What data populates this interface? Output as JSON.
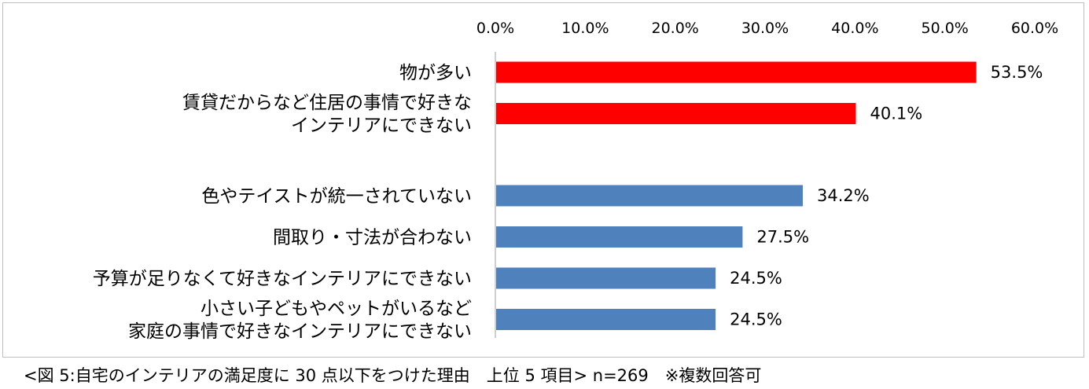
{
  "chart_data": {
    "type": "bar",
    "orientation": "horizontal",
    "xlim": [
      0,
      60
    ],
    "x_ticks": [
      "0.0%",
      "10.0%",
      "20.0%",
      "30.0%",
      "40.0%",
      "50.0%",
      "60.0%"
    ],
    "x_axis_position": "top",
    "grid": false,
    "categories": [
      {
        "lines": [
          "物が多い"
        ],
        "value": 53.5,
        "label": "53.5%",
        "color": "#ff0000",
        "gap_before": false
      },
      {
        "lines": [
          "賃貸だからなど住居の事情で好きな",
          "インテリアにできない"
        ],
        "value": 40.1,
        "label": "40.1%",
        "color": "#ff0000",
        "gap_before": false
      },
      {
        "lines": [
          "色やテイストが統一されていない"
        ],
        "value": 34.2,
        "label": "34.2%",
        "color": "#4f81bd",
        "gap_before": true
      },
      {
        "lines": [
          "間取り・寸法が合わない"
        ],
        "value": 27.5,
        "label": "27.5%",
        "color": "#4f81bd",
        "gap_before": false
      },
      {
        "lines": [
          "予算が足りなくて好きなインテリアにできない"
        ],
        "value": 24.5,
        "label": "24.5%",
        "color": "#4f81bd",
        "gap_before": false
      },
      {
        "lines": [
          "小さい子どもやペットがいるなど",
          "家庭の事情で好きなインテリアにできない"
        ],
        "value": 24.5,
        "label": "24.5%",
        "color": "#4f81bd",
        "gap_before": false
      }
    ]
  },
  "caption": "<図 5:自宅のインテリアの満足度に 30 点以下をつけた理由　上位 5 項目> n=269　※複数回答可"
}
